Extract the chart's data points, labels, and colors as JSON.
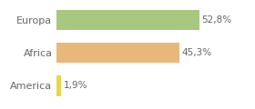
{
  "categories": [
    "America",
    "Africa",
    "Europa"
  ],
  "values": [
    1.9,
    45.3,
    52.8
  ],
  "bar_colors": [
    "#e8d44d",
    "#e8b87a",
    "#a8c880"
  ],
  "label_format": [
    "1,9%",
    "45,3%",
    "52,8%"
  ],
  "xlim": [
    0,
    62
  ],
  "background_color": "#ffffff",
  "bar_height": 0.62,
  "label_fontsize": 7.5,
  "ytick_fontsize": 8.0,
  "grid_color": "#e0e0e0",
  "text_color": "#666666"
}
